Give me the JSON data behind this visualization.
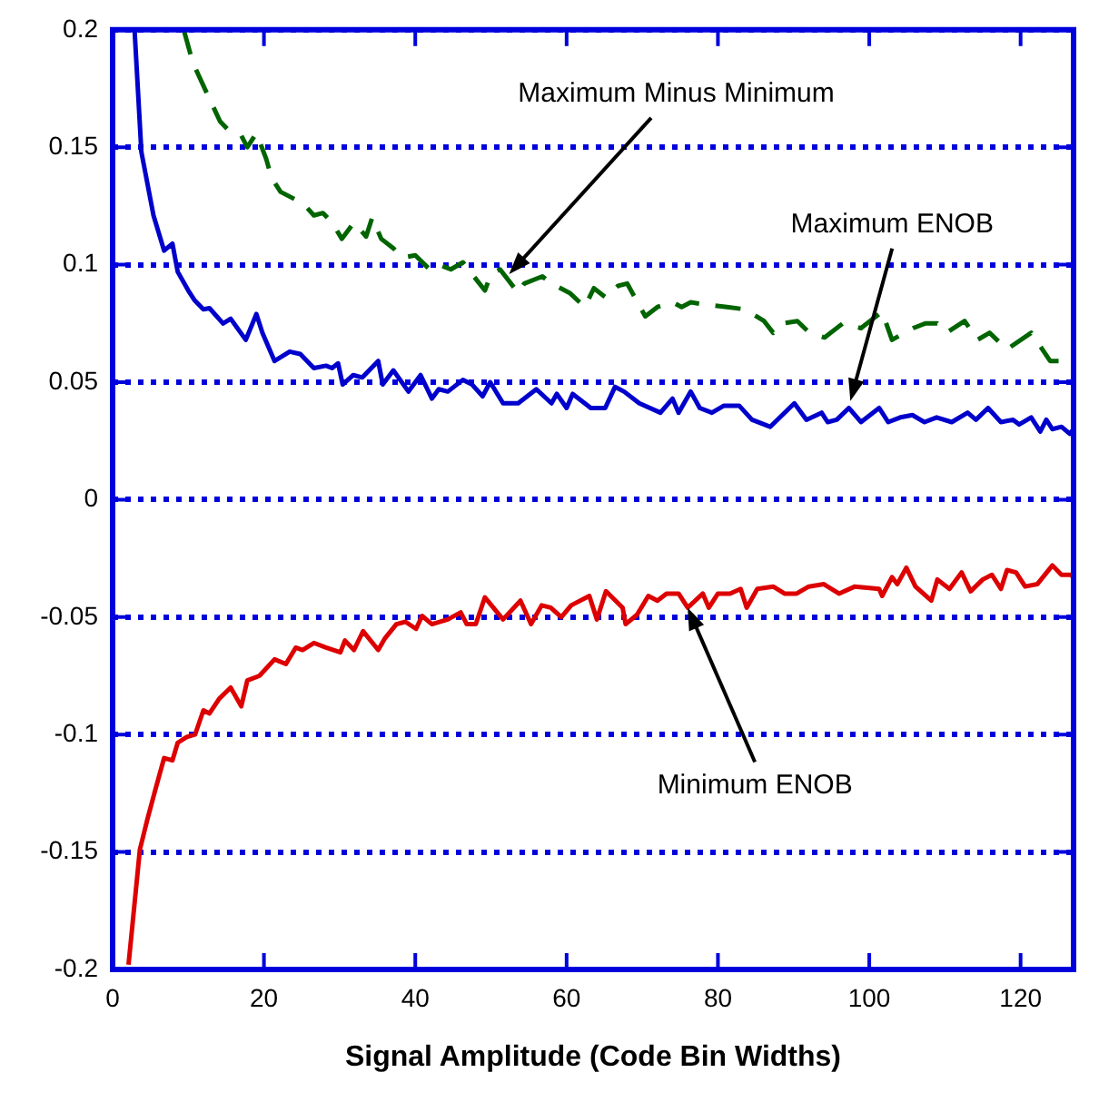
{
  "chart_data": {
    "type": "line",
    "xlabel": "Signal Amplitude (Code Bin Widths)",
    "xlim": [
      0,
      127
    ],
    "xticks": [
      0,
      20,
      40,
      60,
      80,
      100,
      120
    ],
    "ylim": [
      -0.2,
      0.2
    ],
    "yticks": [
      -0.2,
      -0.15,
      -0.1,
      -0.05,
      0,
      0.05,
      0.1,
      0.15,
      0.2
    ],
    "grid": "y",
    "legend": false,
    "marker": "none",
    "series": [
      {
        "color": "#0000cc",
        "line_style": "solid",
        "x": [
          2.9,
          3.8,
          5.4,
          6.8,
          7.9,
          8.6,
          10,
          10.8,
          12,
          12.8,
          14.6,
          15.6,
          17.6,
          19,
          19.8,
          21.4,
          23.4,
          24.8,
          26.6,
          28.2,
          29,
          29.8,
          30.4,
          31.8,
          33,
          35.1,
          35.7,
          37.1,
          39.1,
          40.7,
          42.2,
          43.1,
          44.3,
          46.3,
          47.5,
          48.9,
          49.9,
          51.6,
          53.6,
          56,
          58,
          58.7,
          60,
          60.8,
          63.2,
          65.1,
          66.4,
          67.6,
          69.6,
          72.4,
          74,
          74.8,
          76.4,
          77.6,
          79.2,
          80.8,
          82.8,
          84.5,
          86.9,
          90.1,
          91.7,
          93.7,
          94.5,
          95.7,
          97.3,
          98.9,
          101.3,
          102.5,
          104.1,
          105.7,
          107.3,
          108.9,
          110.9,
          113,
          114.1,
          115.7,
          117.4,
          119,
          119.8,
          121.4,
          122.6,
          123.4,
          124.2,
          125.4,
          126.5,
          127
        ],
        "values": [
          0.2,
          0.148,
          0.121,
          0.106,
          0.109,
          0.097,
          0.089,
          0.085,
          0.081,
          0.0815,
          0.075,
          0.077,
          0.068,
          0.079,
          0.071,
          0.059,
          0.063,
          0.062,
          0.056,
          0.057,
          0.056,
          0.058,
          0.049,
          0.053,
          0.052,
          0.059,
          0.049,
          0.055,
          0.046,
          0.053,
          0.043,
          0.047,
          0.046,
          0.051,
          0.049,
          0.044,
          0.05,
          0.041,
          0.041,
          0.047,
          0.041,
          0.045,
          0.039,
          0.045,
          0.039,
          0.039,
          0.048,
          0.046,
          0.041,
          0.037,
          0.043,
          0.037,
          0.046,
          0.039,
          0.037,
          0.04,
          0.04,
          0.034,
          0.031,
          0.041,
          0.034,
          0.037,
          0.033,
          0.034,
          0.039,
          0.033,
          0.039,
          0.033,
          0.035,
          0.036,
          0.033,
          0.035,
          0.033,
          0.037,
          0.034,
          0.039,
          0.033,
          0.034,
          0.032,
          0.035,
          0.029,
          0.034,
          0.03,
          0.031,
          0.028,
          0.03
        ]
      },
      {
        "color": "#dd0000",
        "line_style": "solid",
        "x": [
          2.1,
          3.6,
          4.6,
          5.6,
          6.8,
          7.9,
          8.6,
          9.8,
          10.9,
          12,
          12.8,
          14.1,
          15.6,
          17,
          17.8,
          19.4,
          21.4,
          22.9,
          24.2,
          25.1,
          26.6,
          28.2,
          30.1,
          30.7,
          31.9,
          33.1,
          35.1,
          36,
          37.5,
          38.7,
          40.1,
          40.9,
          42.2,
          44.3,
          46,
          46.8,
          48,
          49.2,
          51.6,
          53.9,
          55.3,
          56.7,
          57.9,
          59.3,
          60.6,
          63,
          64,
          65.2,
          67.4,
          67.8,
          69.3,
          70.8,
          72,
          73.2,
          74.8,
          76,
          78,
          78.8,
          80,
          81.6,
          83,
          83.8,
          85.2,
          87.3,
          88.8,
          90.4,
          92,
          94,
          96,
          98.1,
          101.3,
          101.7,
          103,
          103.7,
          104.9,
          106.1,
          108.2,
          109,
          110.6,
          112.2,
          113.4,
          115,
          116.2,
          117.4,
          118.2,
          119.4,
          120.6,
          122.2,
          124.2,
          125.4,
          126.6,
          127
        ],
        "values": [
          -0.198,
          -0.149,
          -0.136,
          -0.124,
          -0.11,
          -0.111,
          -0.1035,
          -0.101,
          -0.1,
          -0.0897,
          -0.091,
          -0.0847,
          -0.08,
          -0.088,
          -0.077,
          -0.075,
          -0.068,
          -0.07,
          -0.063,
          -0.064,
          -0.061,
          -0.063,
          -0.065,
          -0.06,
          -0.064,
          -0.056,
          -0.064,
          -0.059,
          -0.053,
          -0.052,
          -0.055,
          -0.0495,
          -0.053,
          -0.051,
          -0.048,
          -0.053,
          -0.053,
          -0.0416,
          -0.051,
          -0.043,
          -0.053,
          -0.045,
          -0.046,
          -0.05,
          -0.045,
          -0.041,
          -0.051,
          -0.039,
          -0.046,
          -0.053,
          -0.049,
          -0.041,
          -0.043,
          -0.04,
          -0.04,
          -0.046,
          -0.04,
          -0.046,
          -0.04,
          -0.04,
          -0.038,
          -0.046,
          -0.038,
          -0.037,
          -0.04,
          -0.04,
          -0.037,
          -0.036,
          -0.04,
          -0.037,
          -0.038,
          -0.041,
          -0.033,
          -0.036,
          -0.029,
          -0.037,
          -0.043,
          -0.034,
          -0.038,
          -0.031,
          -0.039,
          -0.034,
          -0.032,
          -0.038,
          -0.03,
          -0.031,
          -0.037,
          -0.036,
          -0.028,
          -0.032,
          -0.032,
          -0.033
        ]
      },
      {
        "color": "#006400",
        "line_style": "dashed",
        "x": [
          9.4,
          10.6,
          12.6,
          14.2,
          15.4,
          17,
          17.8,
          19,
          20.3,
          21,
          22.2,
          24,
          25.2,
          26.6,
          27.8,
          29,
          30.3,
          31.9,
          33.5,
          34.3,
          35.5,
          37.1,
          38.3,
          40,
          41.9,
          43.1,
          44.7,
          46.3,
          47.5,
          49.2,
          50,
          51.2,
          53.6,
          54.4,
          56.8,
          58,
          60.4,
          62.4,
          63.6,
          65.2,
          66.8,
          68,
          70.4,
          72,
          74,
          75.2,
          76.4,
          78.4,
          81.2,
          83.6,
          86.1,
          87.3,
          88.5,
          90.5,
          92.1,
          94.1,
          96.5,
          98.9,
          101.7,
          103,
          105.8,
          107.4,
          109,
          110.2,
          112.6,
          114.3,
          115.9,
          118.2,
          121.4,
          123.9,
          125.4,
          127
        ],
        "values": [
          0.2,
          0.186,
          0.172,
          0.161,
          0.157,
          0.155,
          0.15,
          0.156,
          0.145,
          0.137,
          0.131,
          0.128,
          0.126,
          0.121,
          0.122,
          0.118,
          0.111,
          0.118,
          0.112,
          0.12,
          0.111,
          0.107,
          0.103,
          0.104,
          0.098,
          0.1,
          0.098,
          0.101,
          0.096,
          0.089,
          0.096,
          0.098,
          0.088,
          0.092,
          0.095,
          0.092,
          0.088,
          0.082,
          0.09,
          0.086,
          0.091,
          0.092,
          0.078,
          0.082,
          0.084,
          0.082,
          0.084,
          0.083,
          0.082,
          0.081,
          0.076,
          0.071,
          0.075,
          0.076,
          0.071,
          0.069,
          0.075,
          0.073,
          0.08,
          0.068,
          0.073,
          0.075,
          0.075,
          0.071,
          0.076,
          0.068,
          0.071,
          0.064,
          0.071,
          0.059,
          0.059,
          0.063
        ]
      }
    ],
    "annotations": [
      {
        "text": "Maximum Minus Minimum",
        "x": 52.4,
        "y": 0.096
      },
      {
        "text": "Maximum ENOB",
        "x": 97.5,
        "y": 0.042
      },
      {
        "text": "Minimum ENOB",
        "x": 76,
        "y": -0.046
      }
    ]
  }
}
